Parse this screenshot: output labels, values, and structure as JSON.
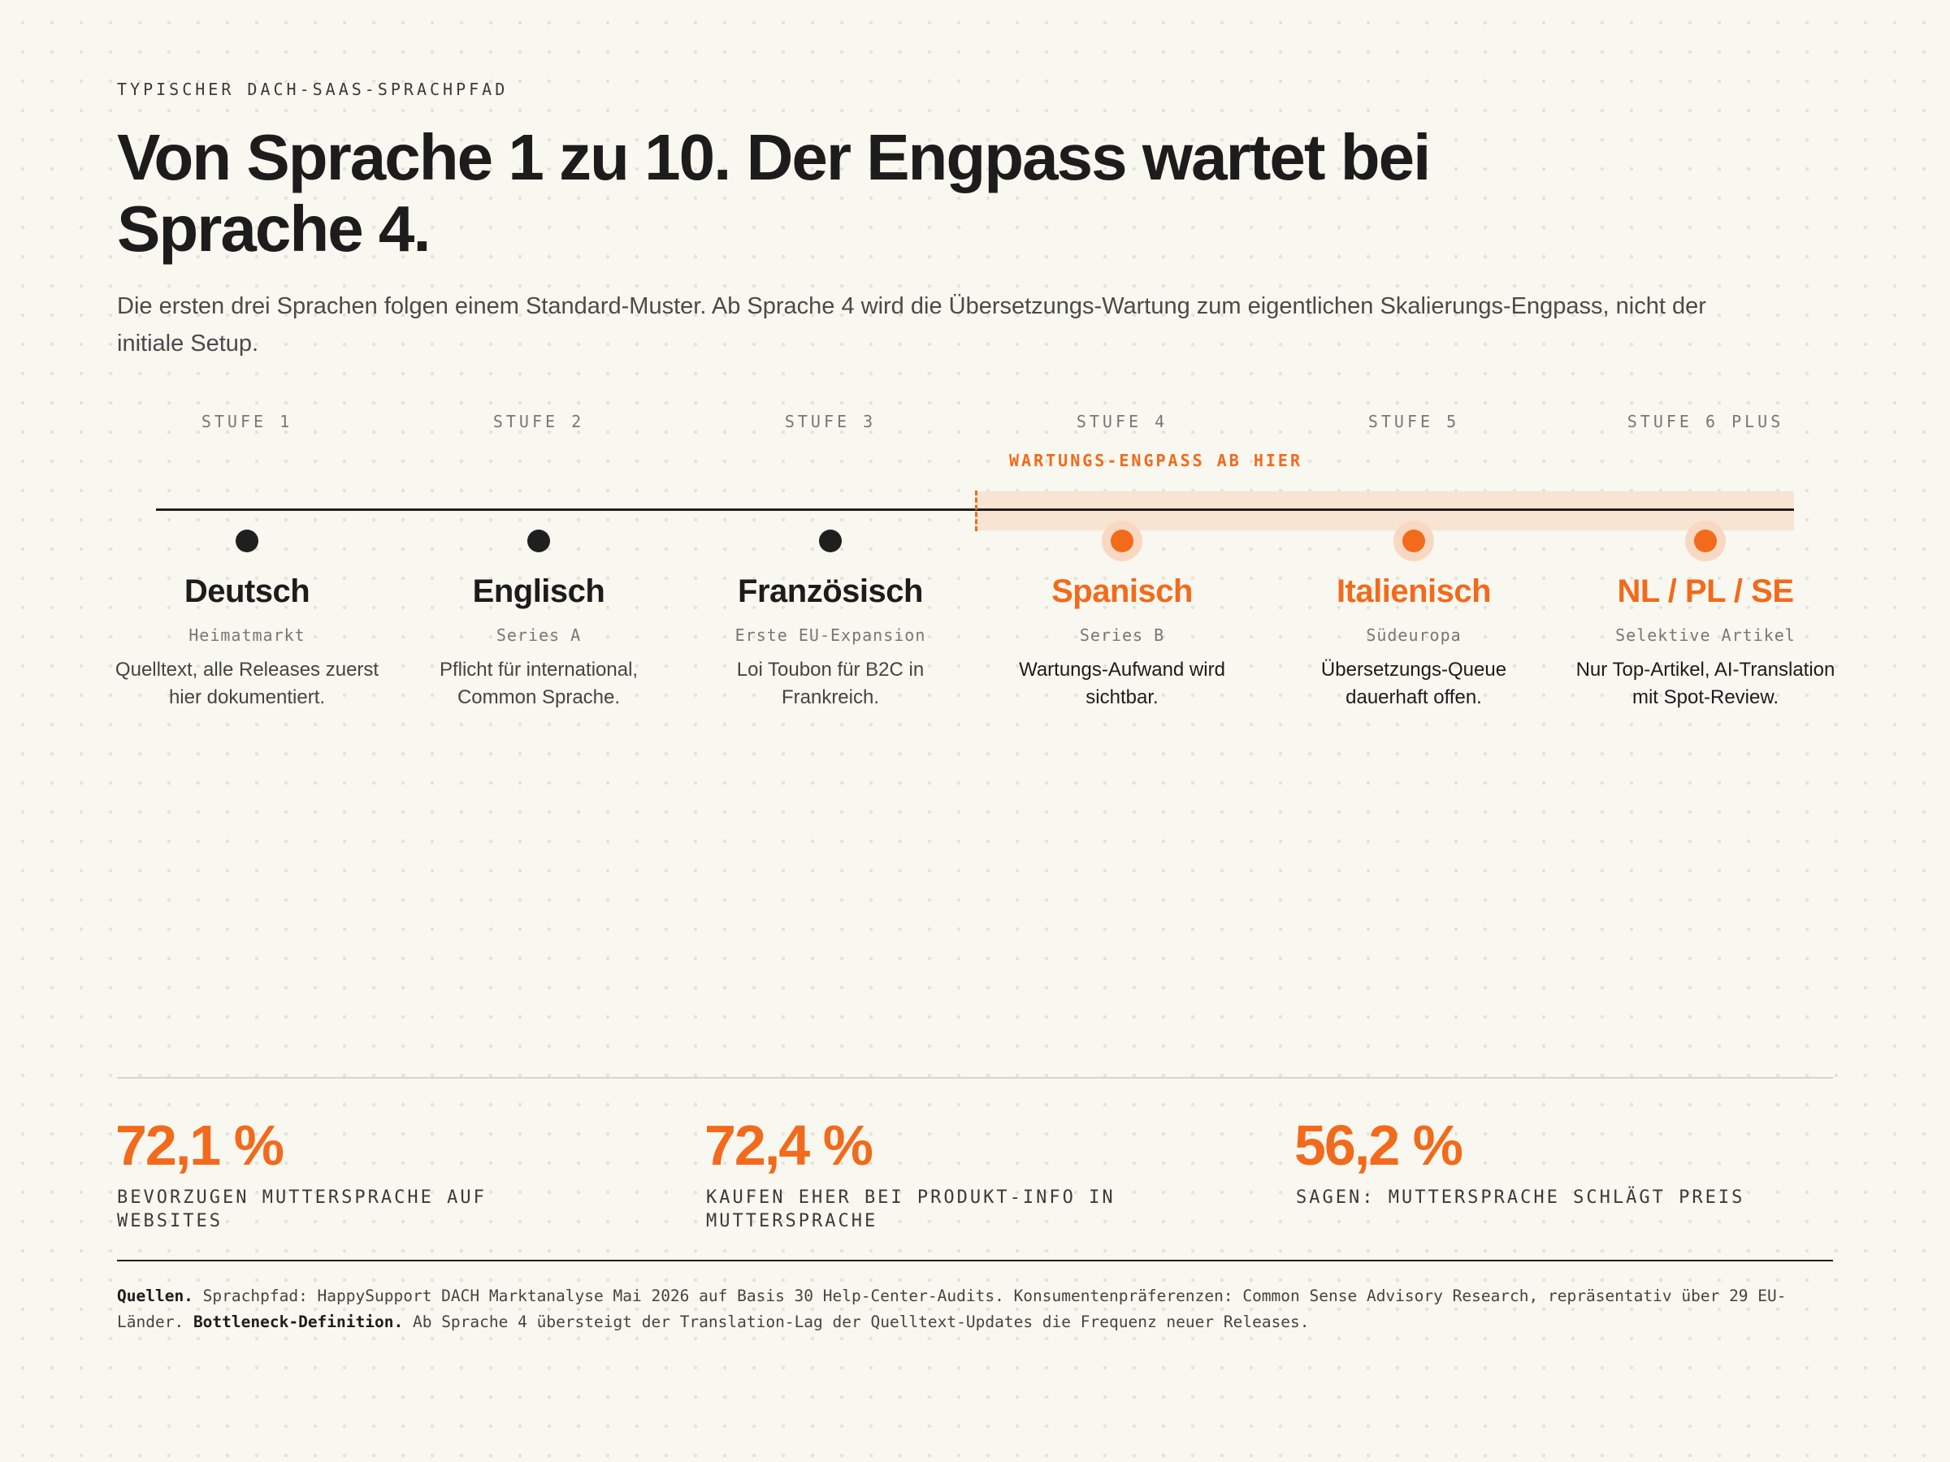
{
  "header": {
    "eyebrow": "TYPISCHER DACH-SAAS-SPRACHPFAD",
    "title": "Von Sprache 1 zu 10. Der Engpass wartet bei Sprache 4.",
    "subtitle": "Die ersten drei Sprachen folgen einem Standard-Muster. Ab Sprache 4 wird die Übersetzungs-Wartung zum eigentlichen Skalierungs-Engpass, nicht der initiale Setup."
  },
  "timeline": {
    "bottleneck_label": "WARTUNGS-ENGPASS AB HIER",
    "bottleneck_from_stage": 4,
    "colors": {
      "accent": "#f26a1b",
      "zone": "#f8e4d3",
      "line": "#1f1f1f"
    },
    "stages": [
      {
        "stage": "STUFE 1",
        "language": "Deutsch",
        "tag": "Heimatmarkt",
        "description": "Quelltext, alle Releases zuerst hier dokumentiert.",
        "highlight": false
      },
      {
        "stage": "STUFE 2",
        "language": "Englisch",
        "tag": "Series A",
        "description": "Pflicht für international, Common Sprache.",
        "highlight": false
      },
      {
        "stage": "STUFE 3",
        "language": "Französisch",
        "tag": "Erste EU-Expansion",
        "description": "Loi Toubon für B2C in Frankreich.",
        "highlight": false
      },
      {
        "stage": "STUFE 4",
        "language": "Spanisch",
        "tag": "Series B",
        "description": "Wartungs-Aufwand wird sichtbar.",
        "highlight": true
      },
      {
        "stage": "STUFE 5",
        "language": "Italienisch",
        "tag": "Südeuropa",
        "description": "Übersetzungs-Queue dauerhaft offen.",
        "highlight": true
      },
      {
        "stage": "STUFE 6 PLUS",
        "language": "NL / PL / SE",
        "tag": "Selektive Artikel",
        "description": "Nur Top-Artikel, AI-Translation mit Spot-Review.",
        "highlight": true
      }
    ]
  },
  "stats": [
    {
      "value": "72,1 %",
      "label": "BEVORZUGEN MUTTERSPRACHE AUF WEBSITES"
    },
    {
      "value": "72,4 %",
      "label": "KAUFEN EHER BEI PRODUKT-INFO IN MUTTERSPRACHE"
    },
    {
      "value": "56,2 %",
      "label": "SAGEN: MUTTERSPRACHE SCHLÄGT PREIS"
    }
  ],
  "sources": {
    "label1": "Quellen.",
    "text1": "Sprachpfad: HappySupport DACH Marktanalyse Mai 2026 auf Basis 30 Help-Center-Audits. Konsumentenpräferenzen: Common Sense Advisory Research, repräsentativ über 29 EU-Länder.",
    "label2": "Bottleneck-Definition.",
    "text2": "Ab Sprache 4 übersteigt der Translation-Lag der Quelltext-Updates die Frequenz neuer Releases."
  }
}
